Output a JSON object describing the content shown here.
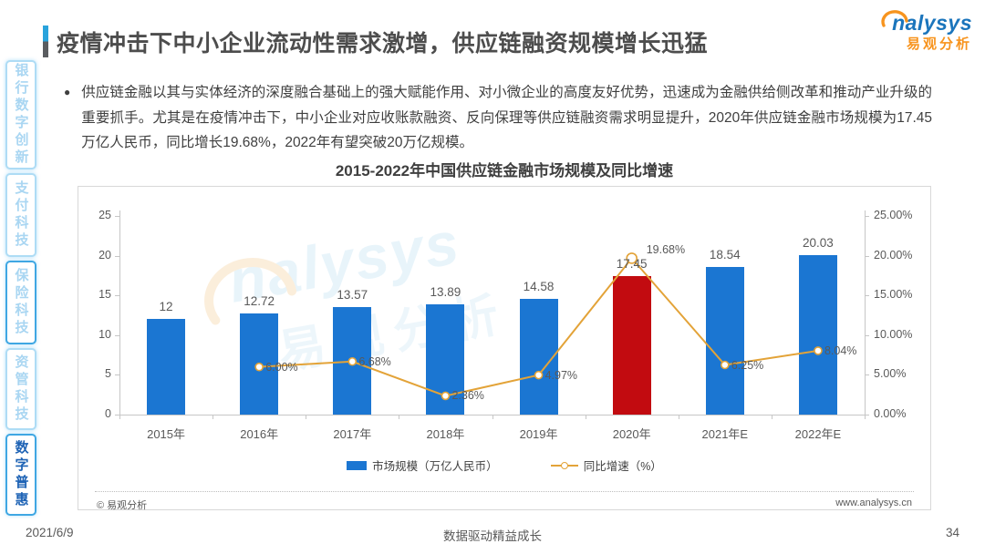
{
  "page": {
    "title": "疫情冲击下中小企业流动性需求激增，供应链融资规模增长迅猛",
    "logo": {
      "brand": "nalysys",
      "brand_cn": "易观分析"
    },
    "footer": {
      "date": "2021/6/9",
      "slogan": "数据驱动精益成长",
      "page_number": "34"
    }
  },
  "sidebar": {
    "items": [
      {
        "label": "银行数字创新",
        "active": false,
        "strong_border": false
      },
      {
        "label": "支付科技",
        "active": false,
        "strong_border": false
      },
      {
        "label": "保险科技",
        "active": false,
        "strong_border": true
      },
      {
        "label": "资管科技",
        "active": false,
        "strong_border": false
      },
      {
        "label": "数字普惠",
        "active": true,
        "strong_border": true
      }
    ]
  },
  "bullet": {
    "text": "供应链金融以其与实体经济的深度融合基础上的强大赋能作用、对小微企业的高度友好优势，迅速成为金融供给侧改革和推动产业升级的重要抓手。尤其是在疫情冲击下，中小企业对应收账款融资、反向保理等供应链融资需求明显提升，2020年供应链金融市场规模为17.45万亿人民币，同比增长19.68%，2022年有望突破20万亿规模。"
  },
  "chart_data": {
    "type": "bar+line",
    "title": "2015-2022年中国供应链金融市场规模及同比增速",
    "categories": [
      "2015年",
      "2016年",
      "2017年",
      "2018年",
      "2019年",
      "2020年",
      "2021年E",
      "2022年E"
    ],
    "series": [
      {
        "name": "市场规模（万亿人民币）",
        "type": "bar",
        "values": [
          12,
          12.72,
          13.57,
          13.89,
          14.58,
          17.45,
          18.54,
          20.03
        ],
        "labels": [
          "12",
          "12.72",
          "13.57",
          "13.89",
          "14.58",
          "17.45",
          "18.54",
          "20.03"
        ]
      },
      {
        "name": "同比增速（%）",
        "type": "line",
        "values": [
          null,
          6.0,
          6.68,
          2.36,
          4.97,
          19.68,
          6.25,
          8.04
        ],
        "labels": [
          null,
          "6.00%",
          "6.68%",
          "2.36%",
          "4.97%",
          "19.68%",
          "6.25%",
          "8.04%"
        ]
      }
    ],
    "left_axis": {
      "ticks": [
        0,
        5,
        10,
        15,
        20,
        25
      ],
      "tick_labels": [
        "0",
        "5",
        "10",
        "15",
        "20",
        "25"
      ],
      "max": 25
    },
    "right_axis": {
      "ticks": [
        0,
        5,
        10,
        15,
        20,
        25
      ],
      "tick_labels": [
        "0.00%",
        "5.00%",
        "10.00%",
        "15.00%",
        "20.00%",
        "25.00%"
      ],
      "max": 25
    },
    "highlight_bar_index": 5,
    "colors": {
      "bar": "#1b76d2",
      "bar_highlight": "#c20b10",
      "line": "#e3a338",
      "axis": "#c6c6c6"
    },
    "legend": [
      {
        "label": "市场规模（万亿人民币）",
        "swatch": "bar"
      },
      {
        "label": "同比增速（%）",
        "swatch": "line"
      }
    ],
    "footnote_left": "© 易观分析",
    "footnote_right": "www.analysys.cn",
    "grid": false,
    "legend_position": "bottom"
  }
}
